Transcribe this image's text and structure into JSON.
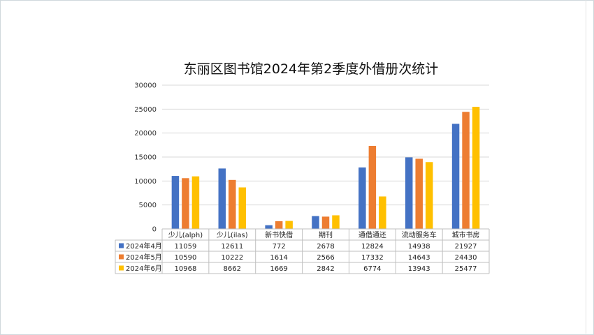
{
  "chart_data": {
    "type": "bar",
    "title": "东丽区图书馆2024年第2季度外借册次统计",
    "categories": [
      "少儿(alph)",
      "少儿(ilas)",
      "新书快借",
      "期刊",
      "通借通还",
      "流动服务车",
      "城市书房"
    ],
    "series": [
      {
        "name": "2024年4月",
        "color": "#4472C4",
        "values": [
          11059,
          12611,
          772,
          2678,
          12824,
          14938,
          21927
        ]
      },
      {
        "name": "2024年5月",
        "color": "#ED7D31",
        "values": [
          10590,
          10222,
          1614,
          2566,
          17332,
          14643,
          24430
        ]
      },
      {
        "name": "2024年6月",
        "color": "#FFC000",
        "values": [
          10968,
          8662,
          1669,
          2842,
          6774,
          13943,
          25477
        ]
      }
    ],
    "ylim": [
      0,
      30000
    ],
    "yticks": [
      "0",
      "5000",
      "10000",
      "15000",
      "20000",
      "25000",
      "30000"
    ],
    "grid": true,
    "legend": "data-table"
  }
}
